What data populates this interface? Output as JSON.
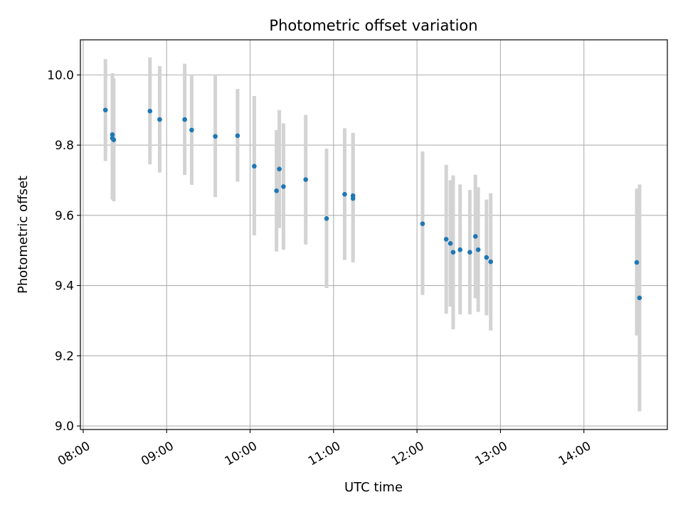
{
  "chart_data": {
    "type": "scatter",
    "title": "Photometric offset variation",
    "xlabel": "UTC time",
    "ylabel": "Photometric offset",
    "xlim": [
      "07:58",
      "15:00"
    ],
    "ylim": [
      8.99,
      10.1
    ],
    "x_ticks": [
      "08:00",
      "09:00",
      "10:00",
      "11:00",
      "12:00",
      "13:00",
      "14:00"
    ],
    "y_ticks": [
      "9.0",
      "9.2",
      "9.4",
      "9.6",
      "9.8",
      "10.0"
    ],
    "grid": true,
    "marker_color": "#1f77b4",
    "errorbar_color": "#d3d3d3",
    "points": [
      {
        "time": "08:16",
        "value": 9.9,
        "err_low": 9.755,
        "err_high": 10.045
      },
      {
        "time": "08:21",
        "value": 9.83,
        "err_low": 9.645,
        "err_high": 10.005
      },
      {
        "time": "08:21",
        "value": 9.82,
        "err_low": 9.65,
        "err_high": 9.99
      },
      {
        "time": "08:22",
        "value": 9.815,
        "err_low": 9.64,
        "err_high": 9.99
      },
      {
        "time": "08:48",
        "value": 9.897,
        "err_low": 9.745,
        "err_high": 10.05
      },
      {
        "time": "08:55",
        "value": 9.873,
        "err_low": 9.722,
        "err_high": 10.025
      },
      {
        "time": "09:13",
        "value": 9.873,
        "err_low": 9.715,
        "err_high": 10.032
      },
      {
        "time": "09:18",
        "value": 9.843,
        "err_low": 9.687,
        "err_high": 9.998
      },
      {
        "time": "09:35",
        "value": 9.825,
        "err_low": 9.652,
        "err_high": 9.998
      },
      {
        "time": "09:51",
        "value": 9.827,
        "err_low": 9.696,
        "err_high": 9.96
      },
      {
        "time": "10:03",
        "value": 9.74,
        "err_low": 9.543,
        "err_high": 9.94
      },
      {
        "time": "10:19",
        "value": 9.67,
        "err_low": 9.497,
        "err_high": 9.843
      },
      {
        "time": "10:21",
        "value": 9.732,
        "err_low": 9.564,
        "err_high": 9.9
      },
      {
        "time": "10:24",
        "value": 9.682,
        "err_low": 9.502,
        "err_high": 9.862
      },
      {
        "time": "10:40",
        "value": 9.702,
        "err_low": 9.517,
        "err_high": 9.886
      },
      {
        "time": "10:55",
        "value": 9.591,
        "err_low": 9.393,
        "err_high": 9.79
      },
      {
        "time": "11:08",
        "value": 9.66,
        "err_low": 9.473,
        "err_high": 9.848
      },
      {
        "time": "11:14",
        "value": 9.656,
        "err_low": 9.476,
        "err_high": 9.835
      },
      {
        "time": "11:14",
        "value": 9.648,
        "err_low": 9.466,
        "err_high": 9.83
      },
      {
        "time": "12:04",
        "value": 9.576,
        "err_low": 9.373,
        "err_high": 9.782
      },
      {
        "time": "12:21",
        "value": 9.532,
        "err_low": 9.32,
        "err_high": 9.744
      },
      {
        "time": "12:24",
        "value": 9.52,
        "err_low": 9.34,
        "err_high": 9.7
      },
      {
        "time": "12:26",
        "value": 9.495,
        "err_low": 9.275,
        "err_high": 9.714
      },
      {
        "time": "12:31",
        "value": 9.502,
        "err_low": 9.318,
        "err_high": 9.688
      },
      {
        "time": "12:38",
        "value": 9.495,
        "err_low": 9.318,
        "err_high": 9.672
      },
      {
        "time": "12:42",
        "value": 9.54,
        "err_low": 9.364,
        "err_high": 9.716
      },
      {
        "time": "12:44",
        "value": 9.502,
        "err_low": 9.325,
        "err_high": 9.68
      },
      {
        "time": "12:50",
        "value": 9.48,
        "err_low": 9.315,
        "err_high": 9.645
      },
      {
        "time": "12:53",
        "value": 9.468,
        "err_low": 9.272,
        "err_high": 9.663
      },
      {
        "time": "14:38",
        "value": 9.466,
        "err_low": 9.258,
        "err_high": 9.676
      },
      {
        "time": "14:40",
        "value": 9.365,
        "err_low": 9.042,
        "err_high": 9.688
      }
    ]
  }
}
